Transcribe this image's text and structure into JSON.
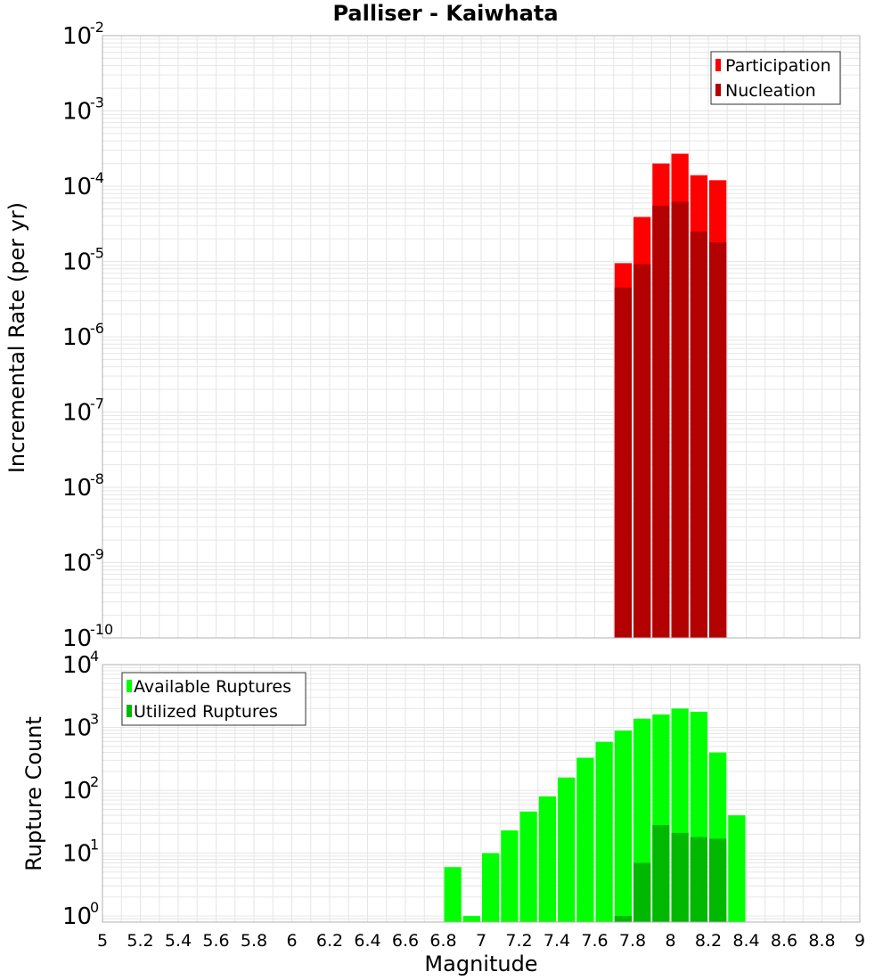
{
  "title": "Palliser - Kaiwhata",
  "colors": {
    "participation": "#ff0000",
    "nucleation": "#b30000",
    "available": "#00ff00",
    "utilized": "#00b800",
    "grid": "#e6e6e6",
    "plot_border": "#b0b0b0"
  },
  "chart_data": [
    {
      "type": "bar",
      "title": "Palliser - Kaiwhata",
      "xlabel": "",
      "ylabel": "Incremental Rate (per yr)",
      "xlim": [
        5,
        9
      ],
      "ylim": [
        1e-10,
        0.01
      ],
      "yscale": "log",
      "grid": true,
      "legend_position": "top-right",
      "x": [
        7.75,
        7.85,
        7.95,
        8.05,
        8.15,
        8.25
      ],
      "series": [
        {
          "name": "Participation",
          "color": "#ff0000",
          "values": [
            9.5e-06,
            3.9e-05,
            0.0002,
            0.00027,
            0.00014,
            0.00012
          ]
        },
        {
          "name": "Nucleation",
          "color": "#b30000",
          "values": [
            4.5e-06,
            9.2e-06,
            5.5e-05,
            6.2e-05,
            2.5e-05,
            1.8e-05
          ]
        }
      ],
      "yticks": [
        {
          "base": "10",
          "exp": "-10"
        },
        {
          "base": "10",
          "exp": "-9"
        },
        {
          "base": "10",
          "exp": "-8"
        },
        {
          "base": "10",
          "exp": "-7"
        },
        {
          "base": "10",
          "exp": "-6"
        },
        {
          "base": "10",
          "exp": "-5"
        },
        {
          "base": "10",
          "exp": "-4"
        },
        {
          "base": "10",
          "exp": "-3"
        },
        {
          "base": "10",
          "exp": "-2"
        }
      ]
    },
    {
      "type": "bar",
      "title": "",
      "xlabel": "Magnitude",
      "ylabel": "Rupture Count",
      "xlim": [
        5,
        9
      ],
      "ylim": [
        0.8,
        10000
      ],
      "yscale": "log",
      "grid": true,
      "legend_position": "top-left",
      "x": [
        6.85,
        6.95,
        7.05,
        7.15,
        7.25,
        7.35,
        7.45,
        7.55,
        7.65,
        7.75,
        7.85,
        7.95,
        8.05,
        8.15,
        8.25,
        8.35
      ],
      "series": [
        {
          "name": "Available Ruptures",
          "color": "#00ff00",
          "values": [
            6,
            1,
            10,
            23,
            46,
            80,
            160,
            330,
            590,
            890,
            1380,
            1610,
            2000,
            1780,
            400,
            40
          ]
        },
        {
          "name": "Utilized Ruptures",
          "color": "#00b800",
          "values": [
            0,
            0,
            0,
            0,
            0,
            0,
            0,
            0,
            0,
            1,
            7,
            28,
            21,
            18,
            17,
            0
          ]
        }
      ],
      "xticks": [
        "5",
        "5.2",
        "5.4",
        "5.6",
        "5.8",
        "6",
        "6.2",
        "6.4",
        "6.6",
        "6.8",
        "7",
        "7.2",
        "7.4",
        "7.6",
        "7.8",
        "8",
        "8.2",
        "8.4",
        "8.6",
        "8.8",
        "9"
      ],
      "yticks": [
        {
          "base": "10",
          "exp": "0"
        },
        {
          "base": "10",
          "exp": "1"
        },
        {
          "base": "10",
          "exp": "2"
        },
        {
          "base": "10",
          "exp": "3"
        },
        {
          "base": "10",
          "exp": "4"
        }
      ]
    }
  ]
}
